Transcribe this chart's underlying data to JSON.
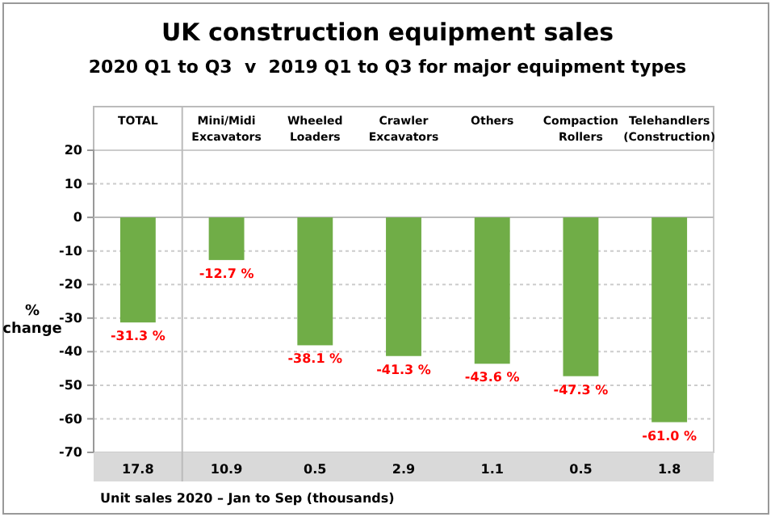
{
  "chart_data": {
    "type": "bar",
    "title": "UK construction equipment sales",
    "subtitle": "2020 Q1 to Q3  v  2019 Q1 to Q3 for major equipment types",
    "ylabel": "% change",
    "categories": [
      "TOTAL",
      "Mini/Midi Excavators",
      "Wheeled Loaders",
      "Crawler Excavators",
      "Others",
      "Compaction Rollers",
      "Telehandlers (Construction)"
    ],
    "values": [
      -31.3,
      -12.7,
      -38.1,
      -41.3,
      -43.6,
      -47.3,
      -61.0
    ],
    "value_labels": [
      "-31.3 %",
      "-12.7 %",
      "-38.1 %",
      "-41.3 %",
      "-43.6 %",
      "-47.3 %",
      "-61.0 %"
    ],
    "color": "#70ad47",
    "ylim": [
      -70,
      20
    ],
    "yticks": [
      -70,
      -60,
      -50,
      -40,
      -30,
      -20,
      -10,
      0,
      10,
      20
    ],
    "grid": "y",
    "annotations": [
      "17.8",
      "10.9",
      "0.5",
      "2.9",
      "1.1",
      "0.5",
      "1.8",
      "Unit sales 2020 – Jan to Sep (thousands)"
    ]
  }
}
